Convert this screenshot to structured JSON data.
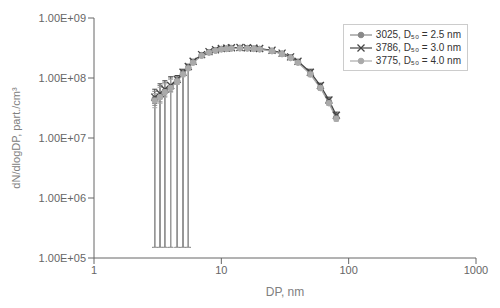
{
  "chart_data": {
    "type": "line",
    "log": true,
    "xlabel": "DP, nm",
    "ylabel": "dN/dlogDP, part./cm³",
    "xlim": [
      1,
      1000
    ],
    "ylim": [
      100000.0,
      1000000000.0
    ],
    "xticks": [
      1,
      10,
      100,
      1000
    ],
    "yticks": [
      {
        "value": 100000.0,
        "label": "1.00E+05"
      },
      {
        "value": 1000000.0,
        "label": "1.00E+06"
      },
      {
        "value": 10000000.0,
        "label": "1.00E+07"
      },
      {
        "value": 100000000.0,
        "label": "1.00E+08"
      },
      {
        "value": 1000000000.0,
        "label": "1.00E+09"
      }
    ],
    "grid": false,
    "legend": "upper right",
    "x": [
      3.0,
      3.3,
      3.6,
      4.0,
      4.5,
      5.0,
      5.5,
      6.0,
      7.0,
      8.0,
      9.0,
      10.0,
      11.0,
      12.0,
      14.0,
      16.0,
      18.0,
      20.0,
      25.0,
      30.0,
      35.0,
      40.0,
      50.0,
      60.0,
      70.0,
      80.0
    ],
    "series": [
      {
        "name": "3025, D₅₀ = 2.5 nm",
        "color": "#888888",
        "marker": "circle",
        "values": [
          45000000.0,
          50000000.0,
          60000000.0,
          70000000.0,
          90000000.0,
          120000000.0,
          150000000.0,
          185000000.0,
          240000000.0,
          270000000.0,
          290000000.0,
          305000000.0,
          310000000.0,
          315000000.0,
          318000000.0,
          315000000.0,
          310000000.0,
          305000000.0,
          285000000.0,
          255000000.0,
          220000000.0,
          185000000.0,
          120000000.0,
          70000000.0,
          40000000.0,
          22000000.0
        ],
        "error_low": [
          35000000.0,
          40000000.0,
          50000000.0,
          60000000.0,
          80000000.0,
          110000000.0,
          140000000.0,
          175000000.0,
          230000000.0,
          260000000.0,
          280000000.0,
          295000000.0,
          300000000.0,
          305000000.0,
          308000000.0,
          305000000.0,
          300000000.0,
          295000000.0,
          275000000.0,
          245000000.0,
          210000000.0,
          175000000.0,
          110000000.0,
          65000000.0,
          37000000.0,
          20000000.0
        ],
        "error_high": [
          60000000.0,
          75000000.0,
          85000000.0,
          100000000.0,
          105000000.0,
          135000000.0,
          165000000.0,
          200000000.0,
          255000000.0,
          285000000.0,
          305000000.0,
          320000000.0,
          325000000.0,
          330000000.0,
          333000000.0,
          330000000.0,
          325000000.0,
          320000000.0,
          300000000.0,
          270000000.0,
          235000000.0,
          198000000.0,
          135000000.0,
          77000000.0,
          45000000.0,
          25000000.0
        ],
        "long_bar_x": [
          3.0,
          3.3,
          3.6,
          4.0,
          4.5,
          5.0,
          5.5
        ],
        "long_bar_top": [
          45000000.0,
          50000000.0,
          60000000.0,
          70000000.0,
          90000000.0,
          120000000.0,
          150000000.0
        ],
        "long_bar_low": [
          150000.0,
          150000.0,
          150000.0,
          150000.0,
          150000.0,
          150000.0,
          150000.0
        ]
      },
      {
        "name": "3786, D₅₀ = 3.0 nm",
        "color": "#444444",
        "marker": "cross",
        "values": [
          48000000.0,
          55000000.0,
          65000000.0,
          75000000.0,
          95000000.0,
          125000000.0,
          155000000.0,
          190000000.0,
          245000000.0,
          275000000.0,
          295000000.0,
          310000000.0,
          315000000.0,
          320000000.0,
          322000000.0,
          320000000.0,
          315000000.0,
          310000000.0,
          290000000.0,
          260000000.0,
          225000000.0,
          190000000.0,
          125000000.0,
          75000000.0,
          43000000.0,
          24000000.0
        ],
        "error_low": [
          38000000.0,
          45000000.0,
          55000000.0,
          65000000.0,
          85000000.0,
          115000000.0,
          145000000.0,
          180000000.0,
          235000000.0,
          265000000.0,
          285000000.0,
          300000000.0,
          305000000.0,
          310000000.0,
          312000000.0,
          310000000.0,
          305000000.0,
          300000000.0,
          280000000.0,
          250000000.0,
          215000000.0,
          180000000.0,
          115000000.0,
          70000000.0,
          40000000.0,
          22000000.0
        ],
        "error_high": [
          65000000.0,
          80000000.0,
          90000000.0,
          105000000.0,
          110000000.0,
          140000000.0,
          170000000.0,
          205000000.0,
          260000000.0,
          290000000.0,
          310000000.0,
          325000000.0,
          330000000.0,
          335000000.0,
          337000000.0,
          335000000.0,
          330000000.0,
          325000000.0,
          305000000.0,
          275000000.0,
          240000000.0,
          205000000.0,
          140000000.0,
          82000000.0,
          48000000.0,
          27000000.0
        ],
        "long_bar_x": [
          3.0,
          3.3,
          3.6,
          4.0,
          4.5,
          5.0,
          5.5
        ],
        "long_bar_top": [
          48000000.0,
          55000000.0,
          65000000.0,
          75000000.0,
          95000000.0,
          125000000.0,
          155000000.0
        ],
        "long_bar_low": [
          150000.0,
          150000.0,
          150000.0,
          150000.0,
          150000.0,
          150000.0,
          150000.0
        ]
      },
      {
        "name": "3775, D₅₀ = 4.0 nm",
        "color": "#aaaaaa",
        "marker": "circle",
        "values": [
          42000000.0,
          48000000.0,
          58000000.0,
          68000000.0,
          88000000.0,
          115000000.0,
          145000000.0,
          180000000.0,
          235000000.0,
          265000000.0,
          285000000.0,
          300000000.0,
          305000000.0,
          310000000.0,
          312000000.0,
          310000000.0,
          305000000.0,
          300000000.0,
          280000000.0,
          250000000.0,
          215000000.0,
          180000000.0,
          115000000.0,
          68000000.0,
          38000000.0,
          21000000.0
        ],
        "error_low": [
          32000000.0,
          38000000.0,
          48000000.0,
          58000000.0,
          78000000.0,
          105000000.0,
          135000000.0,
          170000000.0,
          225000000.0,
          255000000.0,
          275000000.0,
          290000000.0,
          295000000.0,
          300000000.0,
          302000000.0,
          300000000.0,
          295000000.0,
          290000000.0,
          270000000.0,
          240000000.0,
          205000000.0,
          170000000.0,
          105000000.0,
          62000000.0,
          35000000.0,
          19000000.0
        ],
        "error_high": [
          55000000.0,
          70000000.0,
          80000000.0,
          95000000.0,
          100000000.0,
          130000000.0,
          160000000.0,
          195000000.0,
          250000000.0,
          280000000.0,
          300000000.0,
          315000000.0,
          320000000.0,
          325000000.0,
          327000000.0,
          325000000.0,
          320000000.0,
          315000000.0,
          295000000.0,
          265000000.0,
          230000000.0,
          195000000.0,
          130000000.0,
          75000000.0,
          43000000.0,
          24000000.0
        ],
        "long_bar_x": [
          3.0,
          3.3,
          3.6,
          4.0,
          4.5,
          5.0,
          5.5
        ],
        "long_bar_top": [
          42000000.0,
          48000000.0,
          58000000.0,
          68000000.0,
          88000000.0,
          115000000.0,
          145000000.0
        ],
        "long_bar_low": [
          150000.0,
          150000.0,
          150000.0,
          150000.0,
          150000.0,
          150000.0,
          150000.0
        ]
      }
    ]
  }
}
